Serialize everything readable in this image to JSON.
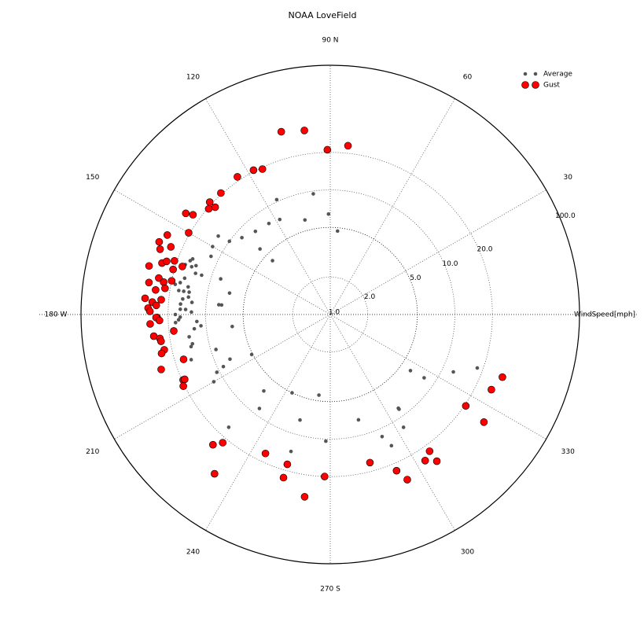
{
  "chart_data": {
    "type": "polar_scatter",
    "title": "NOAA LoveField",
    "r_label": "WindSpeed[mph]",
    "r_scale": "log",
    "rlim": [
      1,
      100
    ],
    "rticks": [
      {
        "value": 1,
        "label": "1.0"
      },
      {
        "value": 2,
        "label": "2.0"
      },
      {
        "value": 5,
        "label": "5.0"
      },
      {
        "value": 10,
        "label": "10.0"
      },
      {
        "value": 20,
        "label": "20.0"
      },
      {
        "value": 100,
        "label": "100.0"
      }
    ],
    "thetaticks": [
      30,
      60,
      {
        "value": 90,
        "label": "90 N"
      },
      120,
      150,
      {
        "value": 180,
        "label": "180 W"
      },
      210,
      240,
      {
        "value": 270,
        "label": "270 S"
      },
      300,
      330
    ],
    "grid": true,
    "legend": "upper right",
    "series": [
      {
        "name": "Average",
        "color": "#555555",
        "theta": [
          91,
          85,
          98,
          115,
          105,
          118,
          124,
          132,
          139,
          144,
          145,
          137,
          137,
          150,
          154,
          158,
          160,
          159,
          161,
          163,
          161,
          163,
          162,
          166,
          168,
          169,
          171,
          169,
          171,
          168,
          171,
          174,
          176,
          173,
          175,
          175,
          175,
          178,
          179,
          178,
          180,
          182,
          181,
          183,
          183,
          187,
          186,
          185,
          189,
          192,
          193,
          197,
          204,
          206,
          207,
          210,
          198,
          207,
          228,
          229,
          233,
          244,
          254,
          254,
          262,
          268,
          285,
          293,
          306,
          306,
          295,
          303,
          325,
          326,
          335,
          340
        ],
        "r": [
          6.4,
          4.7,
          9.5,
          10.4,
          6.1,
          7.3,
          7.6,
          7.9,
          8.7,
          10,
          12.5,
          5.9,
          4.3,
          12.3,
          11.6,
          15.5,
          14,
          16,
          15,
          13.5,
          17,
          12,
          8.4,
          16,
          17,
          18.5,
          14,
          14.5,
          15.5,
          6.7,
          17,
          15.5,
          16,
          14,
          13,
          7.9,
          7.5,
          14.5,
          13,
          16,
          17.5,
          16.5,
          16,
          17.5,
          11.8,
          6.2,
          12.5,
          11,
          14,
          13.5,
          14,
          9.1,
          7.6,
          9,
          10.5,
          12,
          14.9,
          5.1,
          16.5,
          6.5,
          8.8,
          5,
          7.6,
          13.9,
          4.5,
          10.4,
          7.5,
          11.6,
          8.5,
          8.7,
          14.5,
          12,
          6.1,
          8.1,
          12.3,
          18
        ]
      },
      {
        "name": "Gust",
        "color": "#ff0000",
        "theta": [
          105,
          98,
          91,
          84,
          118,
          115,
          124,
          132,
          137,
          139,
          137,
          145,
          144,
          150,
          154,
          157,
          157,
          159,
          165,
          163,
          162,
          161,
          162,
          164,
          168,
          170,
          169,
          168,
          172,
          171,
          175,
          176,
          178,
          177,
          175,
          179,
          181,
          181,
          182,
          183,
          186,
          187,
          188,
          189,
          192,
          193,
          198,
          197,
          204,
          204,
          206,
          228,
          230,
          234,
          245,
          254,
          254,
          262,
          268,
          285,
          293,
          295,
          303,
          306,
          306,
          326,
          325,
          335,
          340
        ],
        "r": [
          33,
          31,
          21,
          23,
          20.5,
          19.4,
          21.5,
          20.5,
          21,
          19.6,
          18.3,
          26,
          23,
          20.5,
          28.5,
          31,
          24.5,
          29,
          32,
          25.8,
          24,
          21,
          17.7,
          20.5,
          25.5,
          30,
          23,
          20,
          26,
          22,
          31,
          27,
          29,
          25,
          23,
          28,
          24.5,
          25,
          23.5,
          28,
          18.3,
          26.7,
          24,
          23.7,
          23,
          24.5,
          26.7,
          17,
          19.6,
          19,
          20.5,
          25.5,
          22,
          38,
          17,
          17.8,
          23,
          30,
          20,
          17,
          23,
          29,
          25,
          22.7,
          28.5,
          20.5,
          32,
          26.7,
          29.5
        ]
      }
    ]
  }
}
